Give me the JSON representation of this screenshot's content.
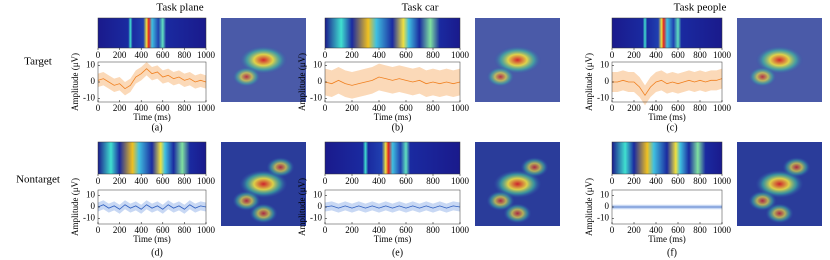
{
  "figure": {
    "column_titles": [
      "Task plane",
      "Task car",
      "Task people"
    ],
    "row_labels": [
      "Target",
      "Nontarget"
    ],
    "captions": [
      "(a)",
      "(b)",
      "(c)",
      "(d)",
      "(e)",
      "(f)"
    ]
  },
  "chart_data": [
    {
      "type": "strip",
      "xlim": [
        0,
        1000
      ],
      "xticks": [
        0,
        200,
        400,
        600,
        800,
        1000
      ]
    },
    {
      "type": "line",
      "xlabel": "Time (ms)",
      "ylabel": "Amplitude (μV)",
      "x": [
        0,
        50,
        100,
        150,
        200,
        250,
        300,
        350,
        400,
        450,
        500,
        550,
        600,
        650,
        700,
        750,
        800,
        850,
        900,
        950,
        1000
      ],
      "series": [
        {
          "color": "#f08020",
          "band_color": "#fbd9b8",
          "values": [
            1,
            2,
            0,
            -2,
            -1,
            -4,
            -2,
            3,
            5,
            8,
            5,
            6,
            3,
            4,
            2,
            3,
            1,
            2,
            0,
            1,
            0
          ],
          "error": [
            4,
            4,
            4,
            4,
            4,
            4,
            4,
            4,
            4,
            4,
            4,
            4,
            4,
            4,
            4,
            4,
            4,
            4,
            4,
            4,
            4
          ]
        }
      ],
      "xlim": [
        0,
        1000
      ],
      "ylim": [
        -12,
        12
      ],
      "xticks": [
        0,
        200,
        400,
        600,
        800,
        1000
      ],
      "yticks": [
        -10,
        0,
        10
      ]
    },
    {
      "type": "strip",
      "xlim": [
        0,
        1000
      ],
      "xticks": [
        0,
        200,
        400,
        600,
        800,
        1000
      ]
    },
    {
      "type": "line",
      "xlabel": "Time (ms)",
      "ylabel": "Amplitude (μV)",
      "x": [
        0,
        50,
        100,
        150,
        200,
        250,
        300,
        350,
        400,
        450,
        500,
        550,
        600,
        650,
        700,
        750,
        800,
        850,
        900,
        950,
        1000
      ],
      "series": [
        {
          "color": "#f08020",
          "band_color": "#fbd9b8",
          "values": [
            0,
            -1,
            1,
            -1,
            -2,
            -1,
            0,
            1,
            3,
            2,
            1,
            2,
            1,
            0,
            1,
            -1,
            0,
            -1,
            0,
            -1,
            0
          ],
          "error": [
            8,
            8,
            8,
            8,
            8,
            8,
            8,
            8,
            8,
            8,
            8,
            8,
            8,
            8,
            8,
            8,
            8,
            8,
            8,
            8,
            8
          ]
        }
      ],
      "xlim": [
        0,
        1000
      ],
      "ylim": [
        -12,
        12
      ],
      "xticks": [
        0,
        200,
        400,
        600,
        800,
        1000
      ],
      "yticks": [
        -10,
        0,
        10
      ]
    },
    {
      "type": "strip",
      "xlim": [
        0,
        1000
      ],
      "xticks": [
        0,
        200,
        400,
        600,
        800,
        1000
      ]
    },
    {
      "type": "line",
      "xlabel": "Time (ms)",
      "ylabel": "Amplitude (μV)",
      "x": [
        0,
        50,
        100,
        150,
        200,
        250,
        300,
        350,
        400,
        450,
        500,
        550,
        600,
        650,
        700,
        750,
        800,
        850,
        900,
        950,
        1000
      ],
      "series": [
        {
          "color": "#f08020",
          "band_color": "#fbd9b8",
          "values": [
            0,
            0,
            1,
            0,
            0,
            -3,
            -8,
            -3,
            0,
            1,
            -1,
            0,
            -1,
            0,
            1,
            0,
            1,
            0,
            1,
            1,
            2
          ],
          "error": [
            6,
            6,
            6,
            6,
            6,
            6,
            6,
            6,
            6,
            6,
            6,
            6,
            6,
            6,
            6,
            6,
            6,
            6,
            6,
            6,
            6
          ]
        }
      ],
      "xlim": [
        0,
        1000
      ],
      "ylim": [
        -12,
        12
      ],
      "xticks": [
        0,
        200,
        400,
        600,
        800,
        1000
      ],
      "yticks": [
        -10,
        0,
        10
      ]
    },
    {
      "type": "strip",
      "xlim": [
        0,
        1000
      ],
      "xticks": [
        0,
        200,
        400,
        600,
        800,
        1000
      ]
    },
    {
      "type": "line",
      "xlabel": "Time (ms)",
      "ylabel": "Amplitude (μV)",
      "x": [
        0,
        50,
        100,
        150,
        200,
        250,
        300,
        350,
        400,
        450,
        500,
        550,
        600,
        650,
        700,
        750,
        800,
        850,
        900,
        950,
        1000
      ],
      "series": [
        {
          "color": "#3060c0",
          "band_color": "#c8d8f4",
          "values": [
            0,
            2,
            -1,
            1,
            -2,
            2,
            -1,
            1,
            -2,
            2,
            -1,
            1,
            -2,
            2,
            -1,
            1,
            -2,
            2,
            -1,
            1,
            0
          ],
          "error": [
            4,
            4,
            4,
            4,
            4,
            4,
            4,
            4,
            4,
            4,
            4,
            4,
            4,
            4,
            4,
            4,
            4,
            4,
            4,
            4,
            4
          ]
        }
      ],
      "xlim": [
        0,
        1000
      ],
      "ylim": [
        -15,
        15
      ],
      "xticks": [
        0,
        200,
        400,
        600,
        800,
        1000
      ],
      "yticks": [
        -10,
        0,
        10
      ]
    },
    {
      "type": "strip",
      "xlim": [
        0,
        1000
      ],
      "xticks": [
        0,
        200,
        400,
        600,
        800,
        1000
      ]
    },
    {
      "type": "line",
      "xlabel": "Time (ms)",
      "ylabel": "Amplitude (μV)",
      "x": [
        0,
        50,
        100,
        150,
        200,
        250,
        300,
        350,
        400,
        450,
        500,
        550,
        600,
        650,
        700,
        750,
        800,
        850,
        900,
        950,
        1000
      ],
      "series": [
        {
          "color": "#3060c0",
          "band_color": "#c8d8f4",
          "values": [
            0,
            1,
            -1,
            1,
            -1,
            1,
            -1,
            1,
            -1,
            1,
            -1,
            1,
            -1,
            1,
            -1,
            1,
            -1,
            1,
            -1,
            1,
            0
          ],
          "error": [
            4,
            4,
            4,
            4,
            4,
            4,
            4,
            4,
            4,
            4,
            4,
            4,
            4,
            4,
            4,
            4,
            4,
            4,
            4,
            4,
            4
          ]
        }
      ],
      "xlim": [
        0,
        1000
      ],
      "ylim": [
        -15,
        15
      ],
      "xticks": [
        0,
        200,
        400,
        600,
        800,
        1000
      ],
      "yticks": [
        -10,
        0,
        10
      ]
    },
    {
      "type": "strip",
      "xlim": [
        0,
        1000
      ],
      "xticks": [
        0,
        200,
        400,
        600,
        800,
        1000
      ]
    },
    {
      "type": "line",
      "xlabel": "Time (ms)",
      "ylabel": "Amplitude (μV)",
      "x": [
        0,
        50,
        100,
        150,
        200,
        250,
        300,
        350,
        400,
        450,
        500,
        550,
        600,
        650,
        700,
        750,
        800,
        850,
        900,
        950,
        1000
      ],
      "series": [
        {
          "color": "#3060c0",
          "band_color": "#c8d8f4",
          "values": [
            0,
            0,
            0,
            0,
            0,
            0,
            0,
            0,
            0,
            0,
            0,
            0,
            0,
            0,
            0,
            0,
            0,
            0,
            0,
            0,
            0
          ],
          "error": [
            2,
            2,
            2,
            2,
            2,
            2,
            2,
            2,
            2,
            2,
            2,
            2,
            2,
            2,
            2,
            2,
            2,
            2,
            2,
            2,
            2
          ]
        }
      ],
      "xlim": [
        0,
        1000
      ],
      "ylim": [
        -15,
        15
      ],
      "xticks": [
        0,
        200,
        400,
        600,
        800,
        1000
      ],
      "yticks": [
        -10,
        0,
        10
      ]
    }
  ]
}
